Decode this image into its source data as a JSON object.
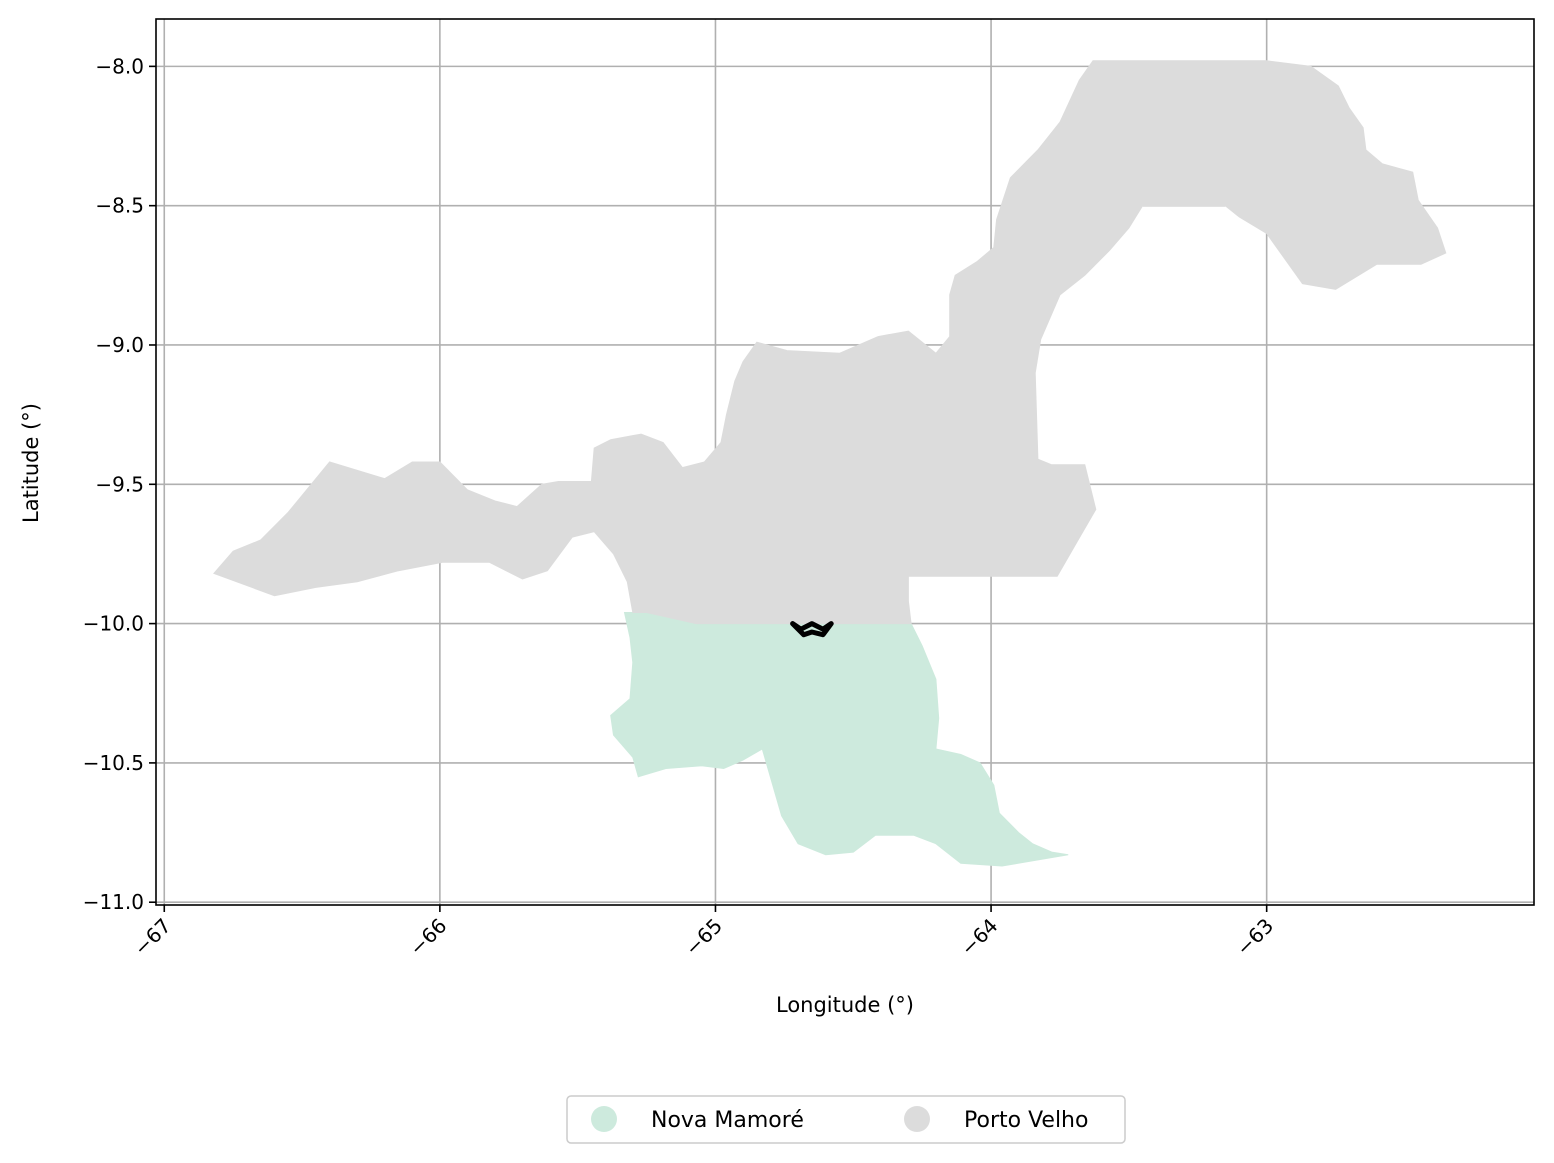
{
  "chart_data": {
    "type": "map",
    "xlabel": "Longitude (°)",
    "ylabel": "Latitude (°)",
    "xlim": [
      -67.03,
      -62.03
    ],
    "ylim": [
      -11.01,
      -7.83
    ],
    "x_ticks": [
      -67,
      -66,
      -65,
      -64,
      -63
    ],
    "x_tick_labels": [
      "−67",
      "−66",
      "−65",
      "−64",
      "−63"
    ],
    "y_ticks": [
      -8.0,
      -8.5,
      -9.0,
      -9.5,
      -10.0,
      -10.5,
      -11.0
    ],
    "y_tick_labels": [
      "−8.0",
      "−8.5",
      "−9.0",
      "−9.5",
      "−10.0",
      "−10.5",
      "−11.0"
    ],
    "grid": true,
    "legend_position": "bottom-center",
    "regions": [
      {
        "name": "Nova Mamoré",
        "color": "#cdeadd",
        "outline": [
          [
            -65.33,
            -9.96
          ],
          [
            -65.25,
            -9.96
          ],
          [
            -65.16,
            -9.98
          ],
          [
            -65.07,
            -10.0
          ],
          [
            -64.6,
            -10.0
          ],
          [
            -64.29,
            -10.0
          ],
          [
            -64.25,
            -10.08
          ],
          [
            -64.2,
            -10.2
          ],
          [
            -64.19,
            -10.34
          ],
          [
            -64.2,
            -10.45
          ],
          [
            -64.11,
            -10.47
          ],
          [
            -64.04,
            -10.5
          ],
          [
            -63.99,
            -10.58
          ],
          [
            -63.97,
            -10.68
          ],
          [
            -63.9,
            -10.75
          ],
          [
            -63.85,
            -10.79
          ],
          [
            -63.78,
            -10.82
          ],
          [
            -63.72,
            -10.83
          ],
          [
            -63.96,
            -10.87
          ],
          [
            -64.11,
            -10.86
          ],
          [
            -64.2,
            -10.79
          ],
          [
            -64.28,
            -10.76
          ],
          [
            -64.42,
            -10.76
          ],
          [
            -64.5,
            -10.82
          ],
          [
            -64.6,
            -10.83
          ],
          [
            -64.7,
            -10.79
          ],
          [
            -64.76,
            -10.69
          ],
          [
            -64.83,
            -10.45
          ],
          [
            -64.9,
            -10.49
          ],
          [
            -64.97,
            -10.52
          ],
          [
            -65.05,
            -10.51
          ],
          [
            -65.18,
            -10.52
          ],
          [
            -65.28,
            -10.55
          ],
          [
            -65.3,
            -10.48
          ],
          [
            -65.37,
            -10.4
          ],
          [
            -65.38,
            -10.33
          ],
          [
            -65.31,
            -10.27
          ],
          [
            -65.3,
            -10.14
          ],
          [
            -65.31,
            -10.05
          ]
        ]
      },
      {
        "name": "Porto Velho",
        "color": "#dcdcdc",
        "outline": [
          [
            -66.82,
            -9.82
          ],
          [
            -66.6,
            -9.9
          ],
          [
            -66.45,
            -9.87
          ],
          [
            -66.3,
            -9.85
          ],
          [
            -66.15,
            -9.81
          ],
          [
            -65.99,
            -9.78
          ],
          [
            -65.82,
            -9.78
          ],
          [
            -65.7,
            -9.84
          ],
          [
            -65.61,
            -9.81
          ],
          [
            -65.52,
            -9.69
          ],
          [
            -65.44,
            -9.67
          ],
          [
            -65.37,
            -9.75
          ],
          [
            -65.32,
            -9.85
          ],
          [
            -65.3,
            -9.96
          ],
          [
            -65.25,
            -9.96
          ],
          [
            -65.16,
            -9.98
          ],
          [
            -65.07,
            -10.0
          ],
          [
            -64.6,
            -10.0
          ],
          [
            -64.29,
            -10.0
          ],
          [
            -64.3,
            -9.92
          ],
          [
            -64.3,
            -9.83
          ],
          [
            -64.2,
            -9.83
          ],
          [
            -63.76,
            -9.83
          ],
          [
            -63.69,
            -9.71
          ],
          [
            -63.62,
            -9.59
          ],
          [
            -63.66,
            -9.43
          ],
          [
            -63.78,
            -9.43
          ],
          [
            -63.83,
            -9.41
          ],
          [
            -63.84,
            -9.1
          ],
          [
            -63.82,
            -8.98
          ],
          [
            -63.75,
            -8.82
          ],
          [
            -63.66,
            -8.75
          ],
          [
            -63.57,
            -8.66
          ],
          [
            -63.5,
            -8.58
          ],
          [
            -63.45,
            -8.5
          ],
          [
            -63.15,
            -8.5
          ],
          [
            -63.1,
            -8.54
          ],
          [
            -63.0,
            -8.6
          ],
          [
            -62.87,
            -8.78
          ],
          [
            -62.75,
            -8.8
          ],
          [
            -62.6,
            -8.71
          ],
          [
            -62.44,
            -8.71
          ],
          [
            -62.35,
            -8.67
          ],
          [
            -62.38,
            -8.58
          ],
          [
            -62.45,
            -8.48
          ],
          [
            -62.47,
            -8.38
          ],
          [
            -62.58,
            -8.35
          ],
          [
            -62.64,
            -8.3
          ],
          [
            -62.65,
            -8.22
          ],
          [
            -62.7,
            -8.15
          ],
          [
            -62.74,
            -8.07
          ],
          [
            -62.84,
            -8.0
          ],
          [
            -63.0,
            -7.98
          ],
          [
            -63.63,
            -7.98
          ],
          [
            -63.68,
            -8.05
          ],
          [
            -63.75,
            -8.2
          ],
          [
            -63.83,
            -8.3
          ],
          [
            -63.93,
            -8.4
          ],
          [
            -63.98,
            -8.55
          ],
          [
            -63.99,
            -8.65
          ],
          [
            -64.05,
            -8.7
          ],
          [
            -64.13,
            -8.75
          ],
          [
            -64.15,
            -8.82
          ],
          [
            -64.15,
            -8.97
          ],
          [
            -64.2,
            -9.03
          ],
          [
            -64.3,
            -8.95
          ],
          [
            -64.41,
            -8.97
          ],
          [
            -64.55,
            -9.03
          ],
          [
            -64.74,
            -9.02
          ],
          [
            -64.85,
            -8.99
          ],
          [
            -64.9,
            -9.06
          ],
          [
            -64.93,
            -9.13
          ],
          [
            -64.96,
            -9.25
          ],
          [
            -64.98,
            -9.35
          ],
          [
            -65.04,
            -9.42
          ],
          [
            -65.12,
            -9.44
          ],
          [
            -65.19,
            -9.35
          ],
          [
            -65.27,
            -9.32
          ],
          [
            -65.38,
            -9.34
          ],
          [
            -65.44,
            -9.37
          ],
          [
            -65.45,
            -9.49
          ],
          [
            -65.57,
            -9.49
          ],
          [
            -65.63,
            -9.5
          ],
          [
            -65.72,
            -9.58
          ],
          [
            -65.8,
            -9.56
          ],
          [
            -65.9,
            -9.52
          ],
          [
            -66.0,
            -9.42
          ],
          [
            -66.1,
            -9.42
          ],
          [
            -66.2,
            -9.48
          ],
          [
            -66.3,
            -9.45
          ],
          [
            -66.4,
            -9.42
          ],
          [
            -66.5,
            -9.54
          ],
          [
            -66.55,
            -9.6
          ],
          [
            -66.65,
            -9.7
          ],
          [
            -66.75,
            -9.74
          ]
        ]
      }
    ],
    "highlight_outline": {
      "color": "#000000",
      "points": [
        [
          -64.72,
          -10.0
        ],
        [
          -64.69,
          -10.02
        ],
        [
          -64.65,
          -10.0
        ],
        [
          -64.61,
          -10.02
        ],
        [
          -64.58,
          -10.0
        ],
        [
          -64.61,
          -10.04
        ],
        [
          -64.65,
          -10.03
        ],
        [
          -64.68,
          -10.04
        ]
      ]
    }
  }
}
